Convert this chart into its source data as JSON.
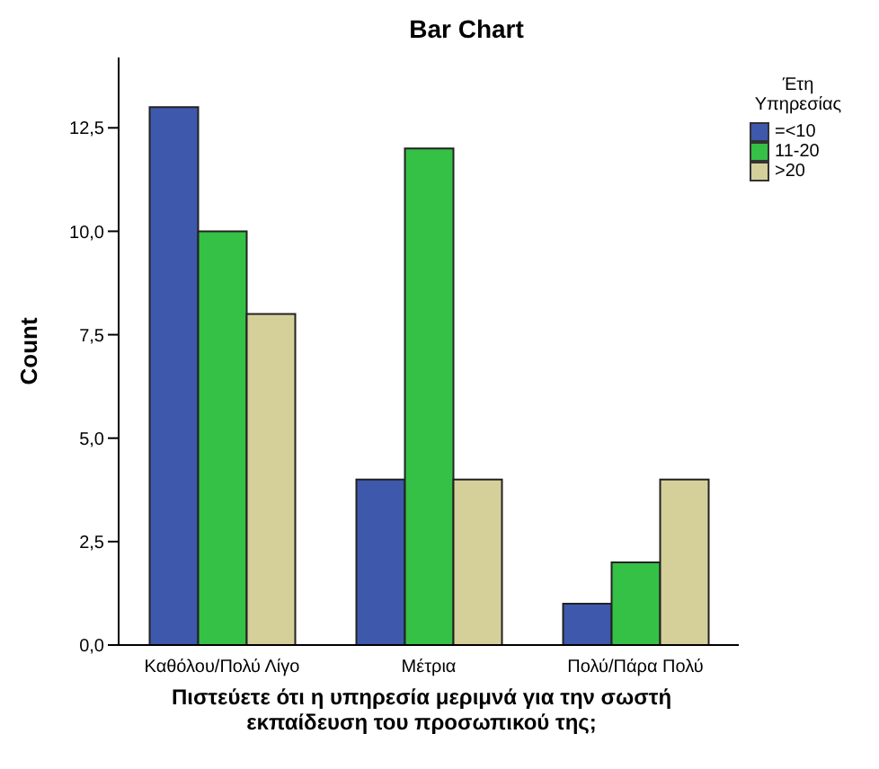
{
  "chart_data": {
    "type": "bar",
    "title": "Bar Chart",
    "xlabel": "Πιστεύετε ότι η υπηρεσία μεριμνά για την σωστή εκπαίδευση του προσωπικού της;",
    "ylabel": "Count",
    "legend_title": "Έτη Υπηρεσίας",
    "categories": [
      "Καθόλου/Πολύ Λίγο",
      "Μέτρια",
      "Πολύ/Πάρα Πολύ"
    ],
    "series": [
      {
        "name": "=<10",
        "color": "#3e58ac",
        "values": [
          13,
          4,
          1
        ]
      },
      {
        "name": "11-20",
        "color": "#35c046",
        "values": [
          10,
          12,
          2
        ]
      },
      {
        "name": ">20",
        "color": "#d5d09a",
        "values": [
          8,
          4,
          4
        ]
      }
    ],
    "ylim": [
      0,
      14.2
    ],
    "yticks": [
      {
        "value": 0,
        "label": "0,0"
      },
      {
        "value": 2.5,
        "label": "2,5"
      },
      {
        "value": 5,
        "label": "5,0"
      },
      {
        "value": 7.5,
        "label": "7,5"
      },
      {
        "value": 10,
        "label": "10,0"
      },
      {
        "value": 12.5,
        "label": "12,5"
      }
    ],
    "grid": false,
    "legend": "top right"
  }
}
